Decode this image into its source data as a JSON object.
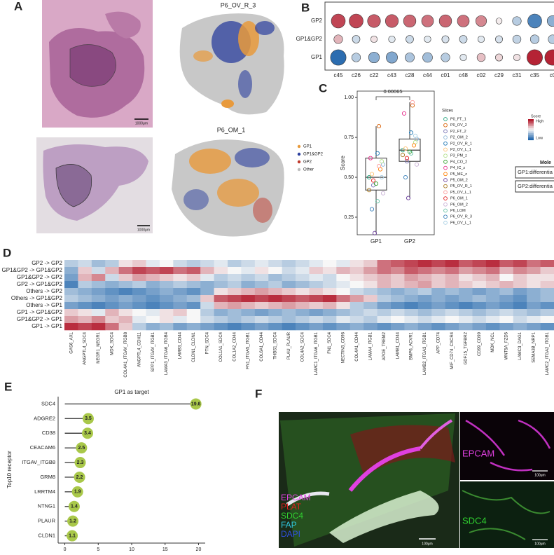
{
  "figure": {
    "panels": [
      "A",
      "B",
      "C",
      "D",
      "E",
      "F"
    ],
    "a_titles": [
      "P6_OV_R_3",
      "P6_OM_1"
    ],
    "a_scale": "1000μm",
    "a_legend": [
      {
        "name": "GP1",
        "color": "#e89a3c"
      },
      {
        "name": "GP1&GP2",
        "color": "#2b3f9e"
      },
      {
        "name": "GP2",
        "color": "#c0392b"
      },
      {
        "name": "Other",
        "color": "#bdbdbd"
      }
    ],
    "f_labels": [
      {
        "name": "EPCAM",
        "color": "#e040e0"
      },
      {
        "name": "PLAT",
        "color": "#e02020"
      },
      {
        "name": "SDC4",
        "color": "#30d030"
      },
      {
        "name": "FAP",
        "color": "#30c8e0"
      },
      {
        "name": "DAPI",
        "color": "#3050e0"
      }
    ],
    "f_scale": "100μm"
  },
  "chart_data": [
    {
      "type": "dot",
      "rows": [
        "GP2",
        "GP1&GP2",
        "GP1"
      ],
      "categories": [
        "c45",
        "c26",
        "c22",
        "c43",
        "c28",
        "c44",
        "c01",
        "c48",
        "c02",
        "c29",
        "c31",
        "c35",
        "c0"
      ],
      "values": [
        [
          0.8,
          0.8,
          0.7,
          0.7,
          0.65,
          0.6,
          0.65,
          0.6,
          0.5,
          0.05,
          -0.3,
          -0.8,
          -0.5
        ],
        [
          0.3,
          -0.2,
          0.1,
          -0.1,
          -0.2,
          -0.1,
          -0.15,
          -0.2,
          -0.1,
          -0.15,
          -0.25,
          -0.3,
          -0.3
        ],
        [
          -0.95,
          -0.3,
          -0.5,
          -0.55,
          -0.35,
          -0.4,
          -0.3,
          -0.1,
          0.25,
          0.15,
          0.1,
          0.95,
          0.95
        ]
      ]
    },
    {
      "type": "box",
      "categories": [
        "GP1",
        "GP2"
      ],
      "ylabel": "Score",
      "annotation": "0.00065",
      "ylim": [
        0.14,
        1.04
      ],
      "yticks": [
        {
          "value": 0.25,
          "label": "0.25"
        },
        {
          "value": 0.5,
          "label": "0.50"
        },
        {
          "value": 0.75,
          "label": "0.75"
        },
        {
          "value": 1,
          "label": "1.00"
        }
      ],
      "box": [
        {
          "min": 0.15,
          "q1": 0.42,
          "median": 0.5,
          "q3": 0.62,
          "max": 0.82
        },
        {
          "min": 0.37,
          "q1": 0.6,
          "median": 0.67,
          "q3": 0.74,
          "max": 0.97
        }
      ],
      "legend_title": "Slices",
      "series": [
        {
          "name": "P0_FT_1",
          "color": "#1b9e77",
          "values": [
            0.5,
            0.67
          ]
        },
        {
          "name": "P0_OV_2",
          "color": "#d95f02",
          "values": [
            0.82,
            0.95
          ]
        },
        {
          "name": "P2_FT_2",
          "color": "#7570b3",
          "values": [
            0.45,
            0.6
          ]
        },
        {
          "name": "P2_OM_2",
          "color": "#8cb4d6",
          "values": [
            0.58,
            0.74
          ]
        },
        {
          "name": "P2_OV_R_1",
          "color": "#1f78b4",
          "values": [
            0.65,
            0.78
          ]
        },
        {
          "name": "P2_OV_L_1",
          "color": "#fdbf6f",
          "values": [
            0.52,
            0.68
          ]
        },
        {
          "name": "P3_PM_z",
          "color": "#b2df8a",
          "values": [
            0.6,
            0.72
          ]
        },
        {
          "name": "P4_CO_2",
          "color": "#33a02c",
          "values": [
            0.46,
            0.66
          ]
        },
        {
          "name": "P4_IC_z",
          "color": "#e7298a",
          "values": [
            0.62,
            0.9
          ]
        },
        {
          "name": "P5_ME_z",
          "color": "#ff7f00",
          "values": [
            0.55,
            0.7
          ]
        },
        {
          "name": "P5_OM_2",
          "color": "#6a3d9a",
          "values": [
            0.15,
            0.37
          ]
        },
        {
          "name": "P5_OV_R_1",
          "color": "#a6761d",
          "values": [
            0.42,
            0.64
          ]
        },
        {
          "name": "P5_OV_L_1",
          "color": "#fb9a99",
          "values": [
            0.57,
            0.97
          ]
        },
        {
          "name": "P6_OM_1",
          "color": "#e31a1c",
          "values": [
            0.48,
            0.62
          ]
        },
        {
          "name": "P6_OM_2",
          "color": "#cab2d6",
          "values": [
            0.4,
            0.58
          ]
        },
        {
          "name": "P6_LOM",
          "color": "#66c2a5",
          "values": [
            0.35,
            0.65
          ]
        },
        {
          "name": "P6_OV_R_3",
          "color": "#377eb8",
          "values": [
            0.3,
            0.5
          ]
        },
        {
          "name": "P6_OV_L_1",
          "color": "#a6cee3",
          "values": [
            0.5,
            0.76
          ]
        }
      ],
      "score_legend": {
        "title": "Score",
        "high": "High",
        "low": "Low"
      },
      "module_legend": {
        "title": "Mole",
        "items": [
          "GP1:differentia",
          "GP2:differentia"
        ]
      }
    },
    {
      "type": "heatmap",
      "rows": [
        "GP2 -> GP2",
        "GP1&GP2 -> GP1&GP2",
        "GP1&GP2 -> GP2",
        "GP2 -> GP1&GP2",
        "Others -> GP2",
        "Others -> GP1&GP2",
        "Others -> GP1",
        "GP1 -> GP1&GP2",
        "GP1&GP2 -> GP1",
        "GP1 -> GP1"
      ],
      "categories": [
        "GAS6_AXL",
        "ANGPTL4_SDC4",
        "NEGR1_NEGR1",
        "MDK_SDC4",
        "COL4A1_ITGAV_ITGB8",
        "ANGPTL4_CDH11",
        "SPP1_ITGAV_ITGB1",
        "LAMA3_ITGA6_ITGB4",
        "LAMB3_CD44",
        "CLDN1_CLDN1",
        "PTN_SDC4",
        "COL1A1_SDC4",
        "COL1A2_CD44",
        "FN1_ITGA5_ITGB1",
        "COL6A1_CD44",
        "THBS1_SDC4",
        "PLAU_PLAUR",
        "COL4A2_SDC4",
        "LAMC1_ITGA6_ITGB1",
        "FN1_SDC4",
        "NECTIN3_CD96",
        "COL4A1_CD44",
        "LAMA4_ITGB1",
        "APOE_TREM2",
        "LAMB1_CD44",
        "BMP6_ACVR1",
        "LAMB2_ITGA3_ITGB1",
        "APP_CD74",
        "MIF_CD74_CXCR4",
        "GDF15_TGFBR2",
        "CD99_CD99",
        "MDK_NCL",
        "WNT5A_FZD5",
        "LAMC3_DAG1",
        "SEMA3B_NRP1",
        "LAMC2_ITGA2_ITGB1"
      ],
      "values": [
        [
          -0.3,
          -0.2,
          -0.4,
          -0.3,
          0.1,
          0.2,
          -0.1,
          0,
          -0.2,
          -0.3,
          -0.2,
          -0.1,
          -0.3,
          -0.2,
          -0.1,
          -0.2,
          -0.3,
          -0.2,
          -0.1,
          0,
          -0.1,
          0.1,
          0.2,
          0.6,
          0.7,
          0.8,
          0.9,
          0.8,
          0.9,
          0.7,
          0.8,
          0.9,
          0.7,
          0.8,
          0.6,
          0.7
        ],
        [
          -0.5,
          0.2,
          -0.2,
          0.3,
          0.6,
          0.8,
          0.7,
          0.8,
          0.6,
          0.7,
          0.3,
          0.1,
          0,
          -0.1,
          0.1,
          0,
          -0.2,
          -0.1,
          0.2,
          0.1,
          0.3,
          0.2,
          0.4,
          0.6,
          0.5,
          0.7,
          0.6,
          0.5,
          0.6,
          0.4,
          0.5,
          0.6,
          0.3,
          0.5,
          0.4,
          0.2
        ],
        [
          -0.6,
          0.3,
          0.5,
          -0.2,
          0.2,
          0.4,
          0.3,
          0.2,
          0.1,
          0.2,
          -0.1,
          -0.3,
          -0.2,
          -0.3,
          -0.2,
          -0.4,
          -0.3,
          -0.2,
          -0.1,
          -0.2,
          0,
          0.1,
          0.2,
          0.3,
          0.2,
          0.4,
          0.3,
          0.2,
          0.3,
          0.1,
          0.2,
          0.3,
          0,
          0.2,
          0.1,
          0.1
        ],
        [
          -0.8,
          -0.3,
          -0.4,
          -0.5,
          -0.4,
          -0.3,
          -0.5,
          -0.4,
          -0.3,
          -0.4,
          -0.5,
          -0.4,
          -0.3,
          -0.5,
          -0.4,
          -0.3,
          -0.5,
          -0.4,
          -0.3,
          -0.2,
          -0.1,
          0,
          0.1,
          0.3,
          0.2,
          0.3,
          0.4,
          0.2,
          0.3,
          0.2,
          0.1,
          0.2,
          0.3,
          0.2,
          0.1,
          0.2
        ],
        [
          -0.4,
          -0.5,
          -0.6,
          -0.7,
          -0.8,
          -0.7,
          -0.6,
          -0.5,
          -0.6,
          -0.7,
          -0.5,
          0.1,
          0.2,
          0.3,
          0.4,
          0.3,
          0.2,
          0.1,
          0.2,
          0.1,
          0,
          -0.2,
          -0.3,
          -0.4,
          -0.5,
          -0.4,
          -0.3,
          -0.5,
          -0.4,
          -0.5,
          -0.6,
          -0.5,
          -0.4,
          -0.6,
          -0.5,
          -0.4
        ],
        [
          -0.3,
          -0.4,
          -0.5,
          -0.6,
          -0.5,
          -0.6,
          -0.7,
          -0.6,
          -0.5,
          -0.4,
          0.2,
          0.7,
          0.8,
          0.9,
          0.8,
          0.9,
          0.8,
          0.7,
          0.8,
          0.9,
          0.6,
          0.4,
          0.2,
          -0.3,
          -0.4,
          -0.5,
          -0.6,
          -0.5,
          -0.6,
          -0.5,
          -0.4,
          -0.5,
          -0.6,
          -0.7,
          -0.5,
          -0.4
        ],
        [
          -0.6,
          -0.7,
          -0.8,
          -0.7,
          -0.6,
          -0.7,
          -0.8,
          -0.7,
          -0.6,
          -0.7,
          -0.2,
          0.3,
          0.4,
          0.3,
          0.2,
          0.3,
          0.4,
          0.3,
          0.2,
          0.3,
          0.1,
          -0.3,
          -0.4,
          -0.6,
          -0.7,
          -0.8,
          -0.7,
          -0.6,
          -0.7,
          -0.8,
          -0.7,
          -0.6,
          -0.7,
          -0.8,
          -0.6,
          -0.7
        ],
        [
          0.2,
          0.1,
          -0.1,
          0.3,
          0.1,
          0,
          -0.1,
          0.1,
          0.2,
          0,
          -0.3,
          -0.5,
          -0.4,
          -0.5,
          -0.6,
          -0.5,
          -0.4,
          -0.5,
          -0.6,
          -0.5,
          -0.4,
          -0.3,
          -0.2,
          -0.3,
          -0.2,
          -0.3,
          -0.4,
          -0.3,
          -0.2,
          -0.3,
          -0.4,
          -0.3,
          -0.2,
          -0.3,
          -0.4,
          -0.3
        ],
        [
          0.4,
          0.3,
          0.5,
          0.2,
          0.3,
          -0.1,
          0,
          0.1,
          -0.1,
          0,
          -0.2,
          -0.3,
          -0.4,
          -0.3,
          -0.2,
          -0.3,
          -0.4,
          -0.3,
          -0.2,
          -0.3,
          -0.1,
          -0.2,
          -0.3,
          -0.1,
          0,
          -0.1,
          -0.2,
          -0.1,
          0,
          -0.1,
          -0.2,
          -0.1,
          0,
          -0.2,
          -0.1,
          0
        ],
        [
          0.9,
          0.8,
          0.9,
          0.6,
          0.2,
          -0.3,
          -0.5,
          -0.4,
          -0.6,
          -0.5,
          -0.6,
          -0.7,
          -0.8,
          -0.7,
          -0.6,
          -0.7,
          -0.8,
          -0.7,
          -0.6,
          -0.7,
          -0.6,
          -0.5,
          -0.6,
          -0.7,
          -0.6,
          -0.5,
          -0.6,
          -0.7,
          -0.6,
          -0.5,
          -0.6,
          -0.7,
          -0.6,
          -0.5,
          -0.6,
          -0.7
        ]
      ]
    },
    {
      "type": "lollipop",
      "title": "GP1 as target",
      "ylabel": "Top10 receptor",
      "color": "#a9c84a",
      "categories": [
        "SDC4",
        "ADGRE2",
        "CD38",
        "CEACAM6",
        "ITGAV_ITGB8",
        "GRM8",
        "LRRTM4",
        "NTNG1",
        "PLAUR",
        "CLDN1"
      ],
      "values": [
        19.6,
        3.5,
        3.4,
        2.5,
        2.3,
        2.2,
        1.9,
        1.4,
        1.2,
        1.1
      ],
      "xlim": [
        -1,
        21
      ],
      "xticks": [
        0,
        5,
        10,
        15,
        20
      ]
    }
  ]
}
